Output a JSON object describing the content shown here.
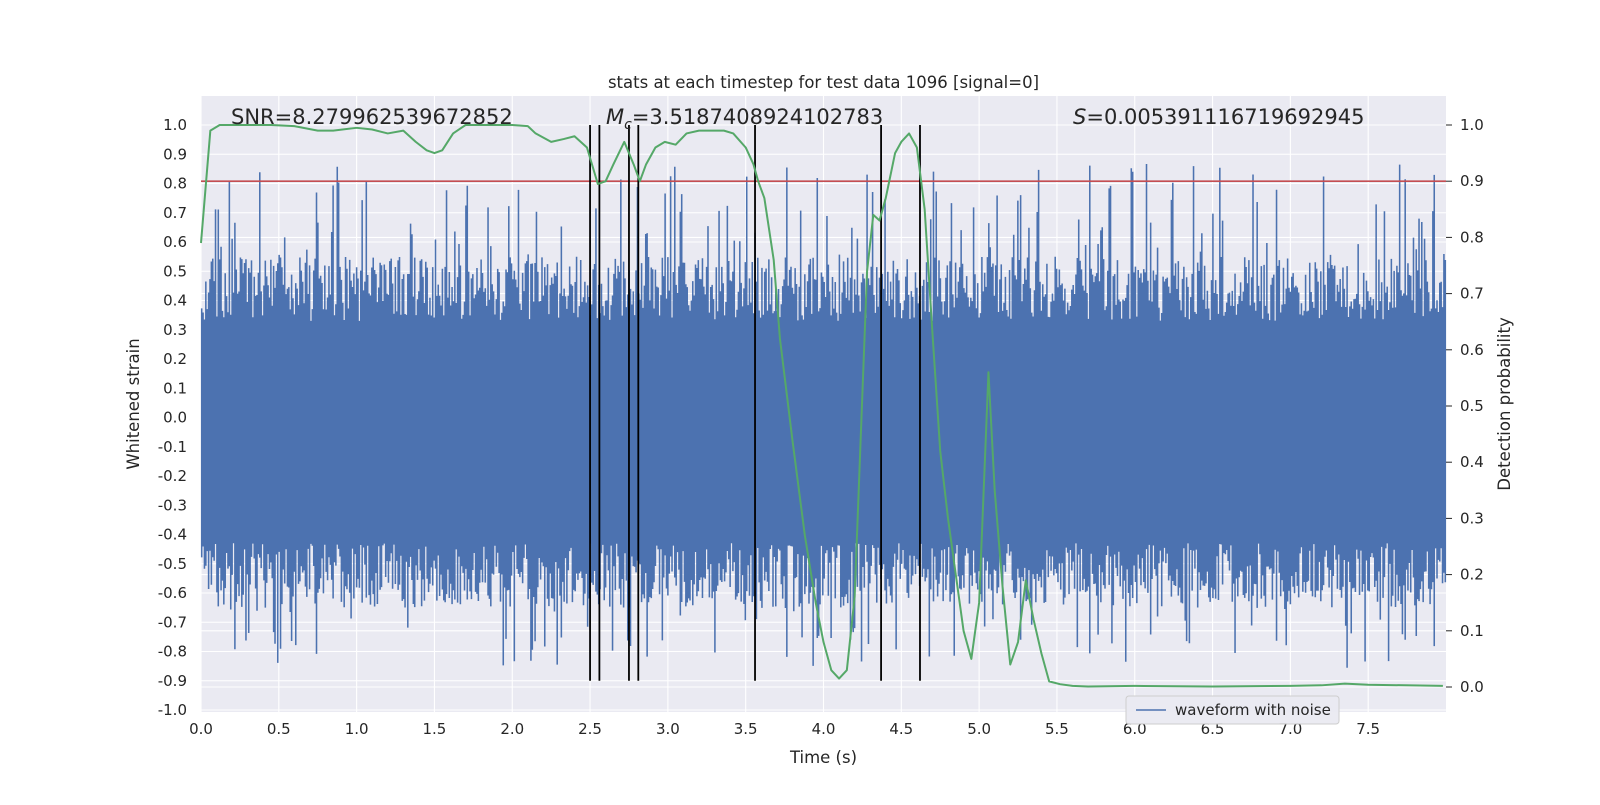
{
  "chart_data": {
    "type": "line",
    "title": "stats at each timestep for test data 1096 [signal=0]",
    "xlabel": "Time (s)",
    "ylabel": "Whitened strain",
    "ylabel_right": "Detection probability",
    "xlim": [
      0,
      8
    ],
    "ylim": [
      -1.0,
      1.0
    ],
    "ylim_right": [
      -0.05,
      1.05
    ],
    "x_ticks": [
      "0.0",
      "0.5",
      "1.0",
      "1.5",
      "2.0",
      "2.5",
      "3.0",
      "3.5",
      "4.0",
      "4.5",
      "5.0",
      "5.5",
      "6.0",
      "6.5",
      "7.0",
      "7.5"
    ],
    "y_ticks": [
      "1.0",
      "0.9",
      "0.8",
      "0.7",
      "0.6",
      "0.5",
      "0.4",
      "0.3",
      "0.2",
      "0.1",
      "0.0",
      "-0.1",
      "-0.2",
      "-0.3",
      "-0.4",
      "-0.5",
      "-0.6",
      "-0.7",
      "-0.8",
      "-0.9",
      "-1.0"
    ],
    "y_ticks_right": [
      "1.0",
      "0.9",
      "0.8",
      "0.7",
      "0.6",
      "0.5",
      "0.4",
      "0.3",
      "0.2",
      "0.1",
      "0.0"
    ],
    "grid": true,
    "legend_position": "lower-right",
    "annotations": {
      "snr_label": "SNR=",
      "snr_value": "8.279962539672852",
      "mc_symbol": "M",
      "mc_subscript": "c",
      "mc_value": "=3.5187408924102783",
      "s_symbol": "S",
      "s_value": "=0.005391116719692945"
    },
    "series": [
      {
        "name": "waveform with noise",
        "axis": "left",
        "color": "#4c72b0",
        "kind": "noise",
        "typical_envelope": [
          -0.55,
          0.45
        ],
        "peak_max": 0.87,
        "peak_min": -0.86
      },
      {
        "axis": "right",
        "color": "#55a868",
        "x": [
          0.0,
          0.06,
          0.12,
          0.25,
          0.45,
          0.6,
          0.75,
          0.85,
          1.0,
          1.1,
          1.2,
          1.3,
          1.38,
          1.45,
          1.5,
          1.55,
          1.62,
          1.7,
          1.8,
          1.9,
          2.0,
          2.1,
          2.15,
          2.25,
          2.33,
          2.4,
          2.48,
          2.55,
          2.6,
          2.65,
          2.72,
          2.78,
          2.82,
          2.86,
          2.92,
          2.98,
          3.05,
          3.12,
          3.2,
          3.28,
          3.36,
          3.42,
          3.5,
          3.55,
          3.58,
          3.62,
          3.68,
          3.72,
          3.8,
          3.88,
          3.95,
          4.0,
          4.05,
          4.1,
          4.15,
          4.2,
          4.24,
          4.28,
          4.32,
          4.36,
          4.4,
          4.46,
          4.5,
          4.55,
          4.6,
          4.65,
          4.7,
          4.75,
          4.8,
          4.85,
          4.9,
          4.95,
          5.0,
          5.06,
          5.1,
          5.15,
          5.2,
          5.25,
          5.3,
          5.35,
          5.4,
          5.45,
          5.52,
          5.6,
          5.7,
          6.0,
          6.5,
          7.0,
          7.2,
          7.35,
          7.5,
          7.98
        ],
        "values": [
          0.79,
          0.99,
          1.0,
          1.0,
          1.0,
          0.998,
          0.99,
          0.99,
          0.995,
          0.992,
          0.985,
          0.99,
          0.97,
          0.955,
          0.95,
          0.955,
          0.985,
          1.0,
          1.0,
          1.0,
          1.0,
          0.998,
          0.985,
          0.97,
          0.975,
          0.98,
          0.96,
          0.895,
          0.9,
          0.93,
          0.97,
          0.93,
          0.9,
          0.93,
          0.96,
          0.97,
          0.965,
          0.985,
          0.99,
          0.99,
          0.99,
          0.985,
          0.96,
          0.93,
          0.9,
          0.87,
          0.76,
          0.62,
          0.44,
          0.27,
          0.15,
          0.08,
          0.03,
          0.015,
          0.03,
          0.16,
          0.45,
          0.74,
          0.84,
          0.83,
          0.87,
          0.95,
          0.97,
          0.985,
          0.96,
          0.85,
          0.63,
          0.42,
          0.3,
          0.2,
          0.1,
          0.05,
          0.15,
          0.56,
          0.35,
          0.18,
          0.04,
          0.08,
          0.19,
          0.12,
          0.06,
          0.01,
          0.005,
          0.002,
          0.001,
          0.002,
          0.001,
          0.002,
          0.003,
          0.006,
          0.004,
          0.002
        ]
      }
    ],
    "threshold_line": {
      "value": 0.9,
      "axis": "right",
      "color": "#c44e52"
    },
    "event_lines": [
      2.5,
      2.56,
      2.75,
      2.81,
      3.56,
      4.37,
      4.62
    ],
    "event_line_span": [
      -0.9,
      1.0
    ],
    "event_line_color": "#000000"
  }
}
